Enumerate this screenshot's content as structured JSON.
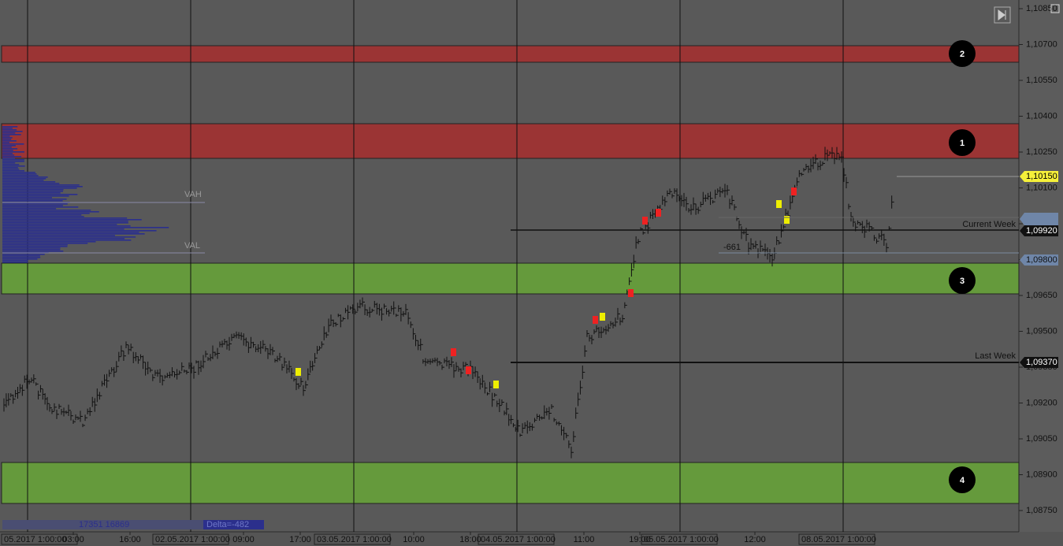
{
  "price_axis": {
    "labels": [
      "1,10850",
      "1,10700",
      "1,10550",
      "1,10400",
      "1,10250",
      "1,10100",
      "1,09950",
      "1,09800",
      "1,09650",
      "1,09500",
      "1,09350",
      "1,09200",
      "1,09050",
      "1,08900",
      "1,08750"
    ]
  },
  "price_tags": {
    "last": "1,10150",
    "current_week": "1,09920",
    "value_low": "1,09800",
    "last_week": "1,09370"
  },
  "time_axis": [
    "03:00",
    "16:00",
    "09:00",
    "17:00",
    "10:00",
    "18:00",
    "11:00",
    "19:00",
    "12:00"
  ],
  "date_tags": [
    "05.2017 1:00:00",
    "02.05.2017 1:00:00",
    "03.05.2017 1:00:00",
    "04.05.2017 1:00:00",
    "05.05.2017 1:00:00",
    "08.05.2017 1:00:00"
  ],
  "zones": [
    {
      "label": "2"
    },
    {
      "label": "1"
    },
    {
      "label": "3"
    },
    {
      "label": "4"
    }
  ],
  "annotations": {
    "vah": "VAH",
    "val": "VAL",
    "current_week": "Current Week",
    "last_week": "Last Week",
    "delta_marker": "-661"
  },
  "footer": {
    "volume": "17351 16869",
    "delta": "Delta=-482"
  }
}
